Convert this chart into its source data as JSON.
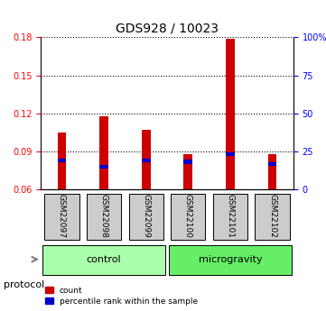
{
  "title": "GDS928 / 10023",
  "samples": [
    "GSM22097",
    "GSM22098",
    "GSM22099",
    "GSM22100",
    "GSM22101",
    "GSM22102"
  ],
  "groups": [
    "control",
    "control",
    "control",
    "microgravity",
    "microgravity",
    "microgravity"
  ],
  "group_colors": {
    "control": "#ccffcc",
    "microgravity": "#99ff99"
  },
  "count_values": [
    0.105,
    0.118,
    0.107,
    0.088,
    0.179,
    0.088
  ],
  "percentile_values": [
    0.083,
    0.078,
    0.083,
    0.082,
    0.088,
    0.08
  ],
  "ylim": [
    0.06,
    0.18
  ],
  "yticks": [
    0.06,
    0.09,
    0.12,
    0.15,
    0.18
  ],
  "right_yticks": [
    0,
    25,
    50,
    75,
    100
  ],
  "right_ytick_positions": [
    0.06,
    0.09,
    0.12,
    0.15,
    0.18
  ],
  "bar_color": "#cc0000",
  "percentile_color": "#0000cc",
  "bar_width": 0.35,
  "grid_color": "#000000",
  "sample_box_color": "#cccccc",
  "legend_count_label": "count",
  "legend_percentile_label": "percentile rank within the sample",
  "protocol_label": "protocol",
  "control_label": "control",
  "microgravity_label": "microgravity"
}
